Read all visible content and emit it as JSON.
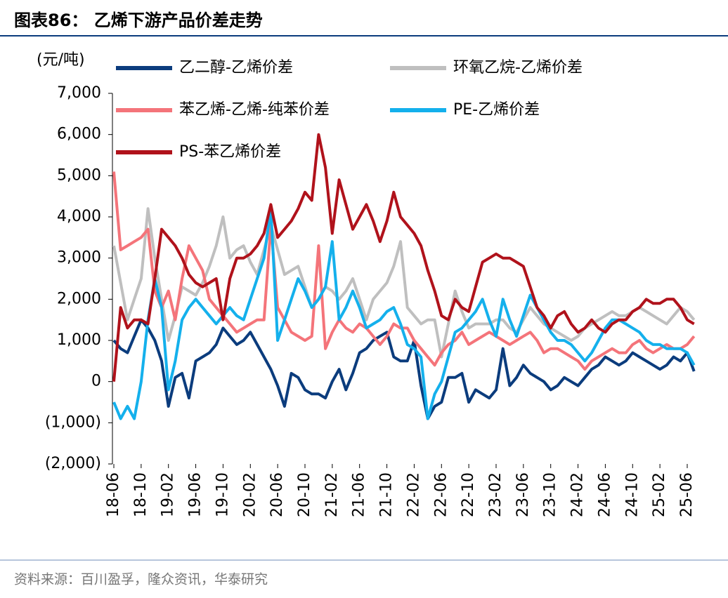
{
  "chart_data": {
    "type": "line",
    "title": "图表86： 乙烯下游产品价差走势",
    "y_label": "(元/吨)",
    "source": "资料来源：百川盈孚，隆众资讯，华泰研究",
    "categories": [
      "18-06",
      null,
      null,
      null,
      "18-10",
      null,
      null,
      null,
      "19-02",
      null,
      null,
      null,
      "19-06",
      null,
      null,
      null,
      "19-10",
      null,
      null,
      null,
      "20-02",
      null,
      null,
      null,
      "20-06",
      null,
      null,
      null,
      "20-10",
      null,
      null,
      null,
      "21-02",
      null,
      null,
      null,
      "21-06",
      null,
      null,
      null,
      "21-10",
      null,
      null,
      null,
      "22-02",
      null,
      null,
      null,
      "22-06",
      null,
      null,
      null,
      "22-10",
      null,
      null,
      null,
      "23-02",
      null,
      null,
      null,
      "23-06",
      null,
      null,
      null,
      "23-10",
      null,
      null,
      null,
      "24-02",
      null,
      null,
      null,
      "24-06",
      null,
      null,
      null,
      "24-10",
      null,
      null,
      null,
      "25-02",
      null,
      null,
      null,
      "25-06",
      null
    ],
    "ylim": [
      -2000,
      7000
    ],
    "yticks": [
      {
        "value": 7000,
        "label": "7,000"
      },
      {
        "value": 6000,
        "label": "6,000"
      },
      {
        "value": 5000,
        "label": "5,000"
      },
      {
        "value": 4000,
        "label": "4,000"
      },
      {
        "value": 3000,
        "label": "3,000"
      },
      {
        "value": 2000,
        "label": "2,000"
      },
      {
        "value": 1000,
        "label": "1,000"
      },
      0,
      {
        "value": -1000,
        "label": "(1,000)"
      },
      {
        "value": -2000,
        "label": "(2,000)"
      }
    ],
    "series": [
      {
        "name": "乙二醇-乙烯价差",
        "color": "#0b3c7d",
        "values": [
          1000,
          800,
          700,
          1100,
          1500,
          1300,
          1000,
          500,
          -600,
          100,
          200,
          -400,
          500,
          600,
          700,
          900,
          1300,
          1100,
          900,
          1000,
          1200,
          900,
          600,
          300,
          -100,
          -600,
          200,
          100,
          -200,
          -300,
          -300,
          -400,
          0,
          300,
          -200,
          200,
          700,
          800,
          1000,
          1100,
          1200,
          600,
          500,
          500,
          1000,
          -100,
          -900,
          -600,
          -500,
          100,
          100,
          200,
          -500,
          -200,
          -300,
          -400,
          -200,
          800,
          -100,
          100,
          400,
          200,
          100,
          0,
          -200,
          -100,
          100,
          0,
          -100,
          100,
          300,
          400,
          600,
          500,
          400,
          500,
          700,
          600,
          500,
          400,
          300,
          400,
          600,
          500,
          700,
          250
        ]
      },
      {
        "name": "环氧乙烷-乙烯价差",
        "color": "#bfbfbf",
        "values": [
          3300,
          2400,
          1500,
          2000,
          2500,
          4200,
          3000,
          2000,
          1000,
          1600,
          2300,
          2200,
          2100,
          2400,
          2800,
          3300,
          4000,
          3000,
          3200,
          3300,
          2900,
          2600,
          3200,
          3800,
          3200,
          2600,
          2700,
          2800,
          2300,
          1800,
          2000,
          2300,
          2200,
          2000,
          2200,
          2500,
          2000,
          1500,
          2000,
          2200,
          2400,
          2800,
          3400,
          1800,
          1600,
          1400,
          1500,
          1500,
          600,
          1400,
          2200,
          1700,
          1300,
          1400,
          1400,
          1400,
          1500,
          1500,
          1300,
          1200,
          1500,
          1800,
          1600,
          1400,
          1300,
          1200,
          1100,
          1000,
          1100,
          1300,
          1400,
          1500,
          1600,
          1700,
          1600,
          1600,
          1700,
          1800,
          1700,
          1600,
          1500,
          1400,
          1600,
          1800,
          1700,
          1500
        ]
      },
      {
        "name": "苯乙烯-乙烯-纯苯价差",
        "color": "#f4747a",
        "values": [
          5100,
          3200,
          3300,
          3400,
          3500,
          3700,
          2200,
          1800,
          2200,
          1500,
          2500,
          3300,
          3000,
          2700,
          2000,
          1800,
          1600,
          1400,
          1200,
          1300,
          1400,
          1500,
          1500,
          3800,
          1800,
          1500,
          1200,
          1100,
          1000,
          1100,
          3300,
          800,
          1200,
          1500,
          1300,
          1200,
          1400,
          1300,
          1100,
          900,
          1100,
          1400,
          1300,
          1300,
          1000,
          800,
          600,
          400,
          700,
          900,
          1000,
          1200,
          900,
          1000,
          1100,
          1200,
          1100,
          1000,
          900,
          1000,
          1100,
          1200,
          1000,
          700,
          800,
          800,
          700,
          600,
          500,
          300,
          500,
          600,
          700,
          800,
          700,
          700,
          900,
          1000,
          800,
          700,
          800,
          900,
          800,
          800,
          900,
          1100
        ]
      },
      {
        "name": "PE-乙烯价差",
        "color": "#14b0ec",
        "values": [
          -500,
          -900,
          -600,
          -900,
          0,
          1500,
          2500,
          1800,
          -200,
          500,
          1500,
          1800,
          2000,
          1800,
          1600,
          1400,
          1600,
          1800,
          1600,
          1500,
          2000,
          2500,
          3000,
          4200,
          1000,
          1500,
          2000,
          2500,
          2200,
          1800,
          2000,
          2300,
          3400,
          1500,
          1800,
          2200,
          1800,
          1300,
          1400,
          1500,
          1700,
          1800,
          1400,
          900,
          800,
          600,
          -900,
          -300,
          0,
          600,
          1200,
          1300,
          1500,
          1700,
          2000,
          1500,
          1100,
          2000,
          1500,
          1100,
          1600,
          2100,
          1800,
          1500,
          1200,
          1000,
          1000,
          900,
          700,
          500,
          700,
          1000,
          1300,
          1500,
          1500,
          1400,
          1300,
          1200,
          1000,
          900,
          900,
          800,
          800,
          800,
          700,
          400
        ]
      },
      {
        "name": "PS-苯乙烯价差",
        "color": "#b0121b",
        "values": [
          0,
          1800,
          1300,
          1500,
          1500,
          1400,
          2500,
          3700,
          3500,
          3300,
          3000,
          2600,
          2400,
          2300,
          2400,
          2500,
          1500,
          2500,
          3000,
          3000,
          3100,
          3300,
          3600,
          4300,
          3500,
          3700,
          3900,
          4200,
          4600,
          4400,
          6000,
          5200,
          3600,
          4900,
          4300,
          3700,
          4000,
          4300,
          3900,
          3400,
          3900,
          4600,
          4000,
          3800,
          3600,
          3300,
          2700,
          2200,
          1600,
          1500,
          2000,
          1800,
          1700,
          2300,
          2900,
          3000,
          3100,
          3000,
          3000,
          2900,
          2800,
          2300,
          1800,
          1600,
          1300,
          1600,
          1700,
          1400,
          1200,
          1300,
          1500,
          1300,
          1200,
          1400,
          1500,
          1500,
          1700,
          1800,
          2000,
          1900,
          1900,
          2000,
          2000,
          1800,
          1500,
          1400
        ]
      }
    ]
  }
}
